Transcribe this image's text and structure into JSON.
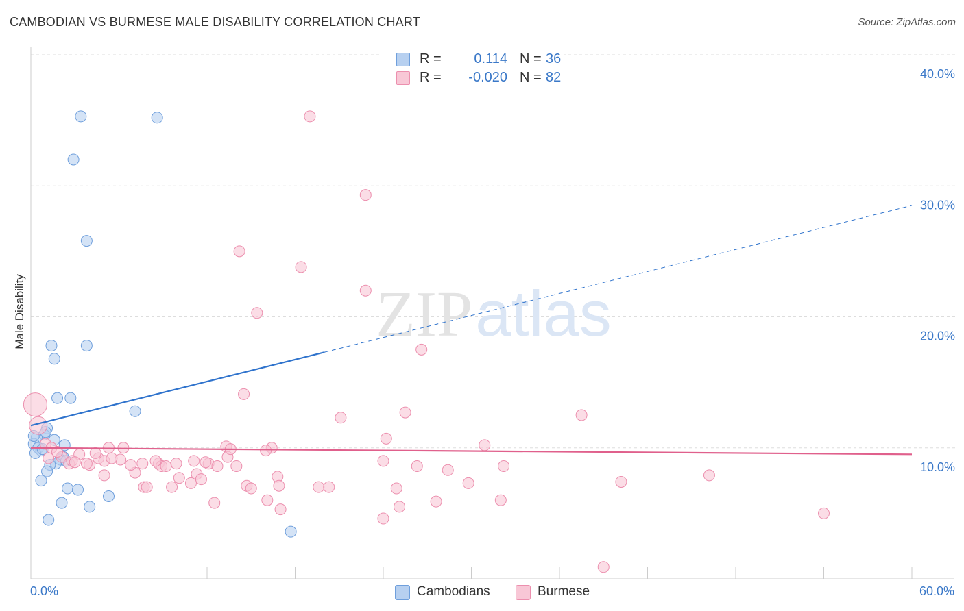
{
  "title": "CAMBODIAN VS BURMESE MALE DISABILITY CORRELATION CHART",
  "source": "Source: ZipAtlas.com",
  "colors": {
    "cambodians_fill": "#b7d0f0",
    "cambodians_stroke": "#6f9fdc",
    "cambodians_line": "#2f73cc",
    "burmese_fill": "#f8c7d6",
    "burmese_stroke": "#ec8fae",
    "burmese_line": "#e0608c",
    "value_text": "#3a78c8",
    "grid": "#dddddd"
  },
  "legend_top": {
    "rows": [
      {
        "r_label": "R =",
        "r_value": "0.114",
        "n_label": "N =",
        "n_value": "36"
      },
      {
        "r_label": "R =",
        "r_value": "-0.020",
        "n_label": "N =",
        "n_value": "82"
      }
    ]
  },
  "legend_bottom": {
    "items": [
      {
        "label": "Cambodians"
      },
      {
        "label": "Burmese"
      }
    ]
  },
  "chart_data": {
    "type": "scatter",
    "title": "CAMBODIAN VS BURMESE MALE DISABILITY CORRELATION CHART",
    "xlabel": "",
    "ylabel": "Male Disability",
    "xlim": [
      0,
      60
    ],
    "ylim": [
      0,
      40
    ],
    "x_tick_labels": [
      "0.0%",
      "60.0%"
    ],
    "y_tick_labels": [
      "10.0%",
      "20.0%",
      "30.0%",
      "40.0%"
    ],
    "y_ticks": [
      10,
      20,
      30,
      40
    ],
    "watermark": "ZIPatlas",
    "series": [
      {
        "name": "Cambodians",
        "R": 0.114,
        "N": 36,
        "trend": {
          "x0": 0,
          "y0": 11.7,
          "x_solid_end": 20,
          "y_solid_end": 17.3,
          "x1": 60,
          "y1": 28.5
        },
        "points": [
          [
            3.4,
            35.3
          ],
          [
            8.6,
            35.2
          ],
          [
            2.9,
            32.0
          ],
          [
            3.8,
            25.8
          ],
          [
            1.4,
            17.8
          ],
          [
            3.8,
            17.8
          ],
          [
            1.6,
            16.8
          ],
          [
            1.8,
            13.8
          ],
          [
            2.7,
            13.8
          ],
          [
            7.1,
            12.8
          ],
          [
            1.1,
            11.5
          ],
          [
            0.9,
            11.0
          ],
          [
            0.4,
            10.8
          ],
          [
            1.6,
            10.6
          ],
          [
            0.2,
            10.3
          ],
          [
            2.3,
            10.2
          ],
          [
            0.5,
            10.0
          ],
          [
            0.7,
            9.8
          ],
          [
            0.3,
            9.6
          ],
          [
            2.2,
            9.3
          ],
          [
            2.0,
            9.1
          ],
          [
            1.7,
            8.8
          ],
          [
            1.3,
            8.7
          ],
          [
            1.1,
            8.2
          ],
          [
            0.7,
            7.5
          ],
          [
            2.5,
            6.9
          ],
          [
            3.2,
            6.8
          ],
          [
            5.3,
            6.3
          ],
          [
            2.1,
            5.8
          ],
          [
            4.0,
            5.5
          ],
          [
            1.2,
            4.5
          ],
          [
            17.7,
            3.6
          ],
          [
            0.2,
            10.9
          ],
          [
            1.0,
            11.2
          ],
          [
            0.8,
            9.9
          ],
          [
            2.4,
            9.0
          ]
        ]
      },
      {
        "name": "Burmese",
        "R": -0.02,
        "N": 82,
        "trend": {
          "x0": 0,
          "y0": 10.0,
          "x1": 60,
          "y1": 9.5
        },
        "points": [
          [
            19.0,
            35.3
          ],
          [
            22.8,
            29.3
          ],
          [
            14.2,
            25.0
          ],
          [
            18.4,
            23.8
          ],
          [
            22.8,
            22.0
          ],
          [
            15.4,
            20.3
          ],
          [
            26.6,
            17.5
          ],
          [
            14.5,
            14.1
          ],
          [
            25.5,
            12.7
          ],
          [
            37.5,
            12.5
          ],
          [
            21.1,
            12.3
          ],
          [
            0.3,
            13.3
          ],
          [
            0.5,
            11.7
          ],
          [
            24.2,
            10.7
          ],
          [
            30.9,
            10.2
          ],
          [
            13.3,
            10.1
          ],
          [
            16.4,
            10.0
          ],
          [
            5.3,
            10.0
          ],
          [
            6.3,
            10.0
          ],
          [
            1.0,
            10.3
          ],
          [
            1.4,
            10.0
          ],
          [
            16.0,
            9.8
          ],
          [
            3.3,
            9.5
          ],
          [
            2.1,
            9.3
          ],
          [
            13.4,
            9.3
          ],
          [
            4.6,
            9.2
          ],
          [
            5.0,
            9.0
          ],
          [
            6.1,
            9.1
          ],
          [
            11.1,
            9.0
          ],
          [
            12.1,
            8.8
          ],
          [
            8.7,
            8.8
          ],
          [
            9.9,
            8.8
          ],
          [
            7.6,
            8.8
          ],
          [
            4.0,
            8.7
          ],
          [
            3.8,
            8.8
          ],
          [
            2.6,
            8.8
          ],
          [
            24.0,
            9.0
          ],
          [
            26.3,
            8.6
          ],
          [
            14.0,
            8.6
          ],
          [
            12.7,
            8.6
          ],
          [
            8.9,
            8.6
          ],
          [
            9.2,
            8.6
          ],
          [
            32.2,
            8.6
          ],
          [
            5.0,
            7.9
          ],
          [
            7.1,
            8.1
          ],
          [
            10.1,
            7.7
          ],
          [
            11.3,
            8.0
          ],
          [
            11.6,
            7.6
          ],
          [
            16.8,
            7.8
          ],
          [
            28.4,
            8.3
          ],
          [
            46.2,
            7.9
          ],
          [
            40.2,
            7.4
          ],
          [
            29.8,
            7.3
          ],
          [
            14.7,
            7.1
          ],
          [
            10.9,
            7.3
          ],
          [
            7.7,
            7.0
          ],
          [
            7.9,
            7.0
          ],
          [
            9.6,
            7.0
          ],
          [
            15.0,
            6.9
          ],
          [
            16.9,
            7.1
          ],
          [
            19.6,
            7.0
          ],
          [
            20.3,
            7.0
          ],
          [
            24.9,
            6.9
          ],
          [
            32.0,
            6.0
          ],
          [
            27.6,
            5.9
          ],
          [
            16.1,
            6.0
          ],
          [
            12.5,
            5.8
          ],
          [
            25.1,
            5.5
          ],
          [
            17.0,
            5.3
          ],
          [
            24.0,
            4.6
          ],
          [
            54.0,
            5.0
          ],
          [
            39.0,
            0.9
          ],
          [
            4.4,
            9.6
          ],
          [
            5.5,
            9.2
          ],
          [
            6.8,
            8.7
          ],
          [
            1.8,
            9.7
          ],
          [
            2.8,
            9.0
          ],
          [
            8.5,
            9.0
          ],
          [
            11.9,
            8.9
          ],
          [
            13.6,
            9.9
          ],
          [
            3.0,
            8.9
          ],
          [
            1.2,
            9.2
          ]
        ]
      }
    ]
  }
}
